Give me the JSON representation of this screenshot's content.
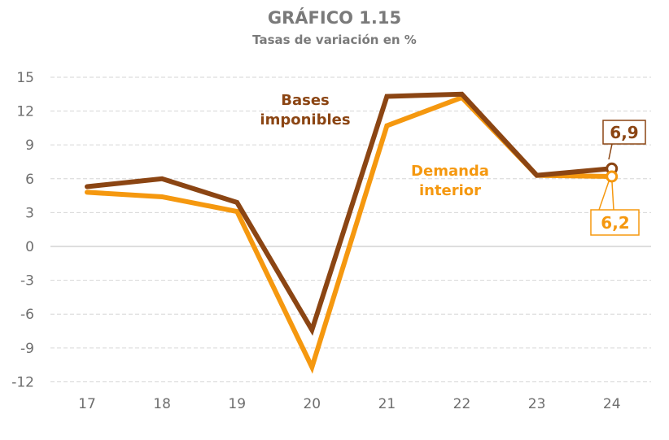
{
  "header": {
    "title": "GRÁFICO 1.15",
    "subtitle": "Tasas de variación en %"
  },
  "chart_data": {
    "type": "line",
    "title": "GRÁFICO 1.15",
    "subtitle": "Tasas de variación en %",
    "xlabel": "",
    "ylabel": "",
    "categories": [
      "17",
      "18",
      "19",
      "20",
      "21",
      "22",
      "23",
      "24"
    ],
    "series": [
      {
        "name": "Bases imponibles",
        "color": "#8b4513",
        "values": [
          5.3,
          6.0,
          3.9,
          -7.4,
          13.3,
          13.5,
          6.3,
          6.9
        ]
      },
      {
        "name": "Demanda interior",
        "color": "#f5980f",
        "values": [
          4.8,
          4.4,
          3.1,
          -10.7,
          10.7,
          13.2,
          6.3,
          6.2
        ]
      }
    ],
    "yticks": [
      "15",
      "12",
      "9",
      "6",
      "3",
      "0",
      "-3",
      "-6",
      "-9",
      "-12"
    ],
    "ylim": [
      -12,
      15
    ],
    "grid": true,
    "legend_position": "inline labels",
    "annotations": [
      {
        "series": "Bases imponibles",
        "x": "24",
        "text": "6,9"
      },
      {
        "series": "Demanda interior",
        "x": "24",
        "text": "6,2"
      }
    ],
    "series_labels": {
      "bases_line1": "Bases",
      "bases_line2": "imponibles",
      "demanda_line1": "Demanda",
      "demanda_line2": "interior"
    }
  }
}
